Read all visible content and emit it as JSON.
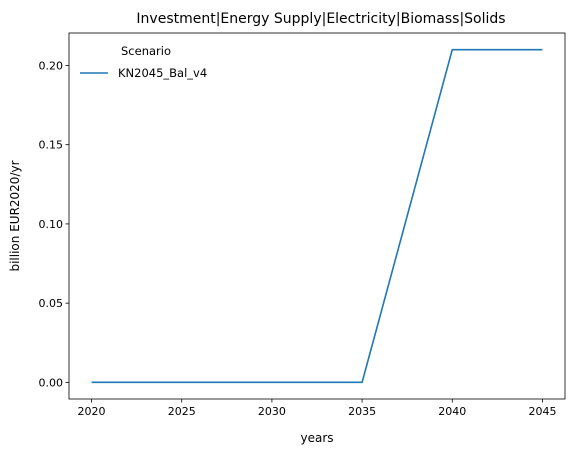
{
  "chart_data": {
    "type": "line",
    "title": "Investment|Energy Supply|Electricity|Biomass|Solids",
    "xlabel": "years",
    "ylabel": "billion EUR2020/yr",
    "x": [
      2020,
      2025,
      2030,
      2035,
      2040,
      2045
    ],
    "xticks": [
      "2020",
      "2025",
      "2030",
      "2035",
      "2040",
      "2045"
    ],
    "yticks": [
      "0.00",
      "0.05",
      "0.10",
      "0.15",
      "0.20"
    ],
    "ylim": [
      -0.0105,
      0.2205
    ],
    "xlim": [
      2018.75,
      2046.25
    ],
    "grid": false,
    "legend": {
      "title": "Scenario",
      "placement": "top-left"
    },
    "series": [
      {
        "name": "KN2045_Bal_v4",
        "color": "#1f77b4",
        "values": [
          0.0,
          0.0,
          0.0,
          0.0,
          0.21,
          0.21
        ]
      }
    ]
  }
}
